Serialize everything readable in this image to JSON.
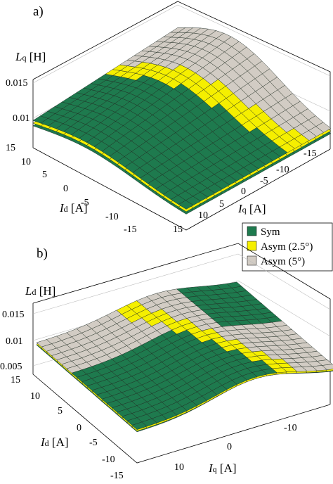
{
  "chart_data": [
    {
      "type": "surface",
      "panel_label": "a)",
      "zlabel_main": "L",
      "zlabel_sub": "q",
      "zlabel_unit": " [H]",
      "xlabel_main": "I",
      "xlabel_sub": "d",
      "xlabel_unit": " [A]",
      "ylabel_main": "I",
      "ylabel_sub": "q",
      "ylabel_unit": " [A]",
      "xlim": [
        -15,
        15
      ],
      "ylim": [
        -15,
        15
      ],
      "zlim": [
        0.008,
        0.016
      ],
      "id_ticks": [
        "15",
        "10",
        "5",
        "0",
        "-5",
        "-10",
        "-15"
      ],
      "iq_ticks": [
        "15",
        "10",
        "5",
        "0",
        "-5",
        "-10",
        "-15"
      ],
      "z_ticks": [
        "0.01",
        "0.015"
      ],
      "series": [
        {
          "name": "Asym (5°)",
          "peak": 0.015,
          "offset": 0.0
        },
        {
          "name": "Asym (2.5°)",
          "peak": 0.0148,
          "offset": -0.0003
        },
        {
          "name": "Sym",
          "peak": 0.0146,
          "offset": -0.0006
        }
      ],
      "grid": true
    },
    {
      "type": "surface",
      "panel_label": "b)",
      "zlabel_main": "L",
      "zlabel_sub": "d",
      "zlabel_unit": " [H]",
      "xlabel_main": "I",
      "xlabel_sub": "d",
      "xlabel_unit": " [A]",
      "ylabel_main": "I",
      "ylabel_sub": "q",
      "ylabel_unit": " [A]",
      "xlim": [
        -15,
        15
      ],
      "ylim": [
        -15,
        15
      ],
      "zlim": [
        0.005,
        0.016
      ],
      "id_ticks": [
        "15",
        "10",
        "5",
        "0",
        "-5",
        "-10",
        "-15"
      ],
      "iq_ticks": [
        "10",
        "0",
        "-10"
      ],
      "z_ticks": [
        "0.005",
        "0.01",
        "0.015"
      ],
      "series": [
        {
          "name": "Asym (5°)",
          "peak": 0.011,
          "offset": 0.0
        },
        {
          "name": "Asym (2.5°)",
          "peak": 0.011,
          "offset": -0.0002
        },
        {
          "name": "Sym",
          "peak": 0.0112,
          "offset": -0.0004
        }
      ],
      "grid": true
    }
  ],
  "legend": {
    "placement": "right, between panels",
    "items": [
      {
        "label": "Sym",
        "color": "#1e7a4e"
      },
      {
        "label": "Asym (2.5°)",
        "color": "#f5ef00"
      },
      {
        "label": "Asym (5°)",
        "color": "#d2ccc4"
      }
    ]
  }
}
